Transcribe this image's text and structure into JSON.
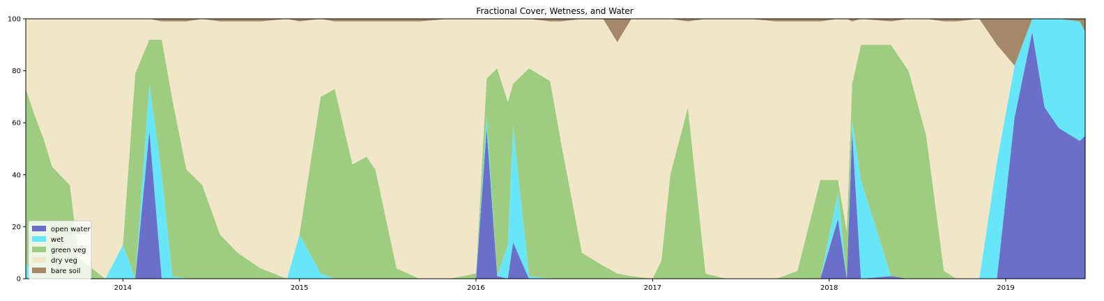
{
  "chart_data": {
    "type": "area",
    "stacked": true,
    "title": "Fractional Cover, Wetness, and Water",
    "xlabel": "",
    "ylabel": "",
    "xlim": [
      2013.45,
      2019.45
    ],
    "ylim": [
      0,
      100
    ],
    "x_ticks": [
      "2014",
      "2015",
      "2016",
      "2017",
      "2018",
      "2019"
    ],
    "y_ticks": [
      "0",
      "20",
      "40",
      "60",
      "80",
      "100"
    ],
    "legend_position": "lower-left",
    "grid": false,
    "x": [
      2013.45,
      2013.5,
      2013.55,
      2013.6,
      2013.7,
      2013.75,
      2013.9,
      2014.0,
      2014.07,
      2014.15,
      2014.22,
      2014.28,
      2014.36,
      2014.45,
      2014.55,
      2014.65,
      2014.78,
      2014.93,
      2015.0,
      2015.12,
      2015.2,
      2015.3,
      2015.38,
      2015.43,
      2015.55,
      2015.68,
      2015.85,
      2016.0,
      2016.06,
      2016.12,
      2016.18,
      2016.21,
      2016.3,
      2016.42,
      2016.48,
      2016.6,
      2016.72,
      2016.8,
      2016.88,
      2017.0,
      2017.05,
      2017.1,
      2017.2,
      2017.3,
      2017.42,
      2017.55,
      2017.7,
      2017.82,
      2017.95,
      2018.05,
      2018.1,
      2018.13,
      2018.18,
      2018.35,
      2018.45,
      2018.55,
      2018.65,
      2018.72,
      2018.85,
      2018.95,
      2019.05,
      2019.15,
      2019.22,
      2019.3,
      2019.42,
      2019.45
    ],
    "series": [
      {
        "name": "open water",
        "color": "#6a6fca",
        "values": [
          0,
          0,
          0,
          0,
          0,
          0,
          0,
          0,
          0,
          57,
          0,
          0,
          0,
          0,
          0,
          0,
          0,
          0,
          0,
          0,
          0,
          0,
          0,
          0,
          0,
          0,
          0,
          0,
          58,
          1,
          0,
          14,
          0,
          0,
          0,
          0,
          0,
          0,
          0,
          0,
          0,
          0,
          0,
          0,
          0,
          0,
          0,
          0,
          0,
          23,
          0,
          57,
          0,
          1,
          0,
          0,
          0,
          0,
          0,
          0,
          62,
          95,
          66,
          58,
          53,
          55
        ]
      },
      {
        "name": "wet",
        "color": "#66e6f8",
        "values": [
          6,
          0,
          0,
          0,
          0,
          0,
          0,
          13,
          0,
          18,
          40,
          1,
          0,
          0,
          0,
          0,
          0,
          0,
          17,
          2,
          0,
          0,
          0,
          0,
          0,
          0,
          0,
          0,
          5,
          0,
          13,
          45,
          1,
          0,
          0,
          0,
          0,
          0,
          0,
          0,
          0,
          0,
          0,
          0,
          0,
          0,
          0,
          0,
          0,
          10,
          0,
          4,
          38,
          0,
          0,
          0,
          0,
          0,
          0,
          45,
          20,
          5,
          34,
          42,
          46,
          40
        ]
      },
      {
        "name": "green veg",
        "color": "#9ecd82",
        "values": [
          67,
          63,
          54,
          43,
          36,
          8,
          0,
          0,
          79,
          17,
          52,
          68,
          42,
          36,
          17,
          10,
          4,
          0,
          0,
          68,
          73,
          44,
          47,
          42,
          4,
          0,
          0,
          2,
          14,
          80,
          55,
          16,
          80,
          76,
          53,
          10,
          5,
          2,
          1,
          0,
          7,
          40,
          66,
          2,
          0,
          0,
          0,
          3,
          38,
          5,
          18,
          14,
          52,
          89,
          80,
          55,
          3,
          0,
          0,
          0,
          0,
          0,
          0,
          0,
          0,
          0
        ]
      },
      {
        "name": "dry veg",
        "color": "#f1e7c8",
        "values": [
          27,
          37,
          46,
          57,
          64,
          92,
          100,
          87,
          21,
          8,
          7,
          30,
          57,
          64,
          82,
          89,
          95,
          100,
          82,
          30,
          26,
          55,
          52,
          57,
          95,
          99,
          100,
          98,
          23,
          19,
          32,
          25,
          19,
          23,
          46,
          90,
          95,
          89,
          99,
          100,
          93,
          60,
          33,
          98,
          100,
          100,
          99,
          96,
          61,
          62,
          82,
          24,
          10,
          9,
          20,
          45,
          96,
          99,
          100,
          45,
          0,
          0,
          0,
          0,
          0,
          0
        ]
      },
      {
        "name": "bare soil",
        "color": "#a3886a",
        "values": [
          0,
          0,
          0,
          0,
          0,
          0,
          0,
          0,
          0,
          0,
          1,
          1,
          1,
          0,
          1,
          1,
          1,
          0,
          1,
          0,
          1,
          1,
          1,
          1,
          1,
          1,
          0,
          0,
          0,
          0,
          0,
          0,
          0,
          1,
          1,
          0,
          0,
          9,
          0,
          0,
          0,
          0,
          1,
          0,
          0,
          0,
          1,
          1,
          1,
          0,
          0,
          1,
          0,
          1,
          0,
          0,
          1,
          1,
          0,
          10,
          18,
          0,
          0,
          0,
          1,
          5
        ]
      }
    ]
  }
}
